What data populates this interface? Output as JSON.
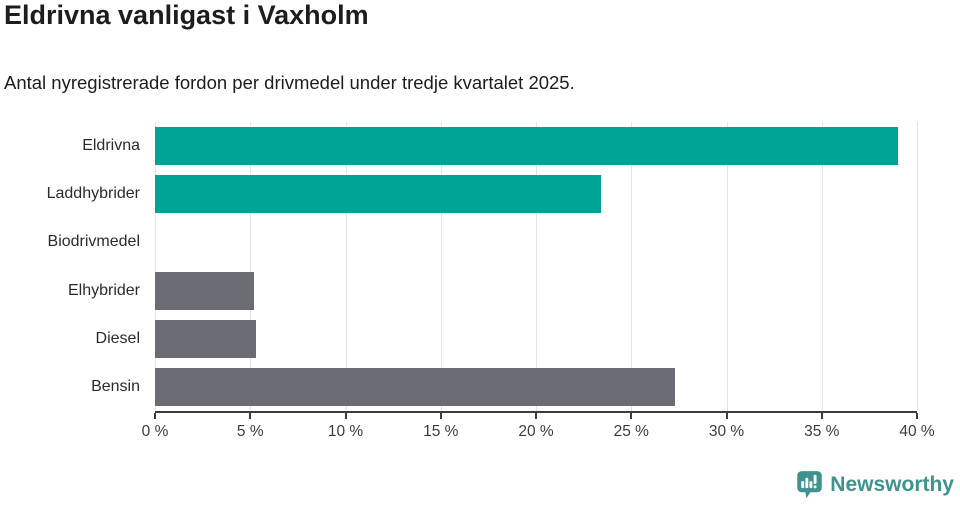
{
  "chart_data": {
    "type": "bar",
    "orientation": "horizontal",
    "title": "Eldrivna vanligast i Vaxholm",
    "subtitle": "Antal nyregistrerade fordon per drivmedel under tredje kvartalet 2025.",
    "categories": [
      "Eldrivna",
      "Laddhybrider",
      "Biodrivmedel",
      "Elhybrider",
      "Diesel",
      "Bensin"
    ],
    "values": [
      39.0,
      23.4,
      0,
      5.2,
      5.3,
      27.3
    ],
    "unit": "%",
    "xlabel": "",
    "ylabel": "",
    "xlim": [
      0,
      40
    ],
    "x_ticks": [
      0,
      5,
      10,
      15,
      20,
      25,
      30,
      35,
      40
    ],
    "x_tick_labels": [
      "0 %",
      "5 %",
      "10 %",
      "15 %",
      "20 %",
      "25 %",
      "30 %",
      "35 %",
      "40 %"
    ],
    "grid": true,
    "legend": "none",
    "bar_colors": [
      "#00a496",
      "#00a496",
      "#6c6c74",
      "#6c6c74",
      "#6c6c74",
      "#6c6c74"
    ]
  },
  "colors": {
    "teal_accent": "#00a496",
    "gray_bar": "#6c6c74",
    "gridline": "#e4e4e4",
    "axis": "#3c3c3c",
    "text": "#1d1d1b",
    "brand_teal": "#3e938d",
    "background": "#ffffff"
  },
  "branding": {
    "name": "Newsworthy",
    "logo_icon": "newsworthy-bar-chart-bubble-icon"
  }
}
